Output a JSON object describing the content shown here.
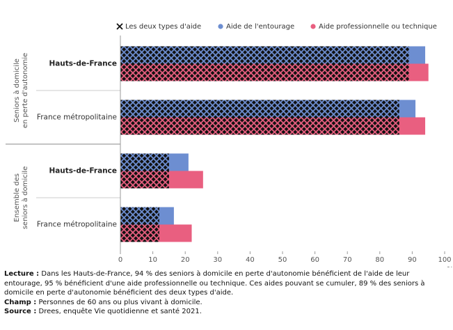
{
  "chart_data": {
    "type": "bar",
    "orientation": "horizontal",
    "legend": "top-right",
    "groups": [
      {
        "label": [
          "Seniors à domicile",
          "en perte d'autonomie"
        ]
      },
      {
        "label": [
          "Ensemble des",
          "seniors à domicile"
        ]
      }
    ],
    "categories": [
      "Hauts-de-France",
      "France métropolitaine",
      "Hauts-de-France",
      "France métropolitaine"
    ],
    "series": [
      {
        "name": "Les deux types d'aide",
        "color": "#111111",
        "values": [
          89,
          86,
          15,
          12
        ]
      },
      {
        "name": "Aide de l'entourage",
        "color": "#6d8ed1",
        "values": [
          94,
          91,
          21,
          16.5
        ]
      },
      {
        "name": "Aide professionnelle ou technique",
        "color": "#e95f80",
        "values": [
          95,
          94,
          25.5,
          22
        ]
      }
    ],
    "xlim": [
      0,
      100
    ],
    "xticks": [
      0,
      10,
      20,
      30,
      40,
      50,
      60,
      70,
      80,
      90,
      100
    ],
    "x_unit_label": "en %"
  },
  "notes": [
    {
      "label": "Lecture :",
      "text": "Dans les Hauts-de-France, 94 % des seniors à domicile en perte d'autonomie bénéficient de l'aide de leur entourage, 95 % bénéficient d'une aide professionnelle ou technique. Ces aides pouvant se cumuler, 89 % des seniors à domicile en perte d'autonomie bénéficient des deux types d'aide."
    },
    {
      "label": "Champ :",
      "text": "Personnes de 60 ans ou plus vivant à domicile."
    },
    {
      "label": "Source :",
      "text": "Drees, enquête Vie quotidienne et santé 2021."
    }
  ]
}
